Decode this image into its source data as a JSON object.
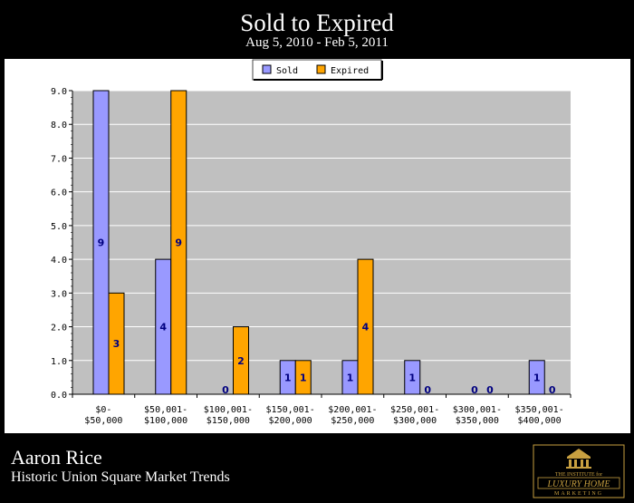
{
  "header": {
    "title": "Sold to Expired",
    "subtitle": "Aug 5, 2010 - Feb 5, 2011"
  },
  "footer": {
    "name": "Aaron Rice",
    "subtitle": "Historic Union Square Market Trends",
    "logo_top": "THE INSTITUTE for",
    "logo_main": "LUXURY HOME",
    "logo_bottom": "MARKETING"
  },
  "chart_data": {
    "type": "bar",
    "title": "",
    "xlabel": "",
    "ylabel": "",
    "categories": [
      [
        "$0-",
        "$50,000"
      ],
      [
        "$50,001-",
        "$100,000"
      ],
      [
        "$100,001-",
        "$150,000"
      ],
      [
        "$150,001-",
        "$200,000"
      ],
      [
        "$200,001-",
        "$250,000"
      ],
      [
        "$250,001-",
        "$300,000"
      ],
      [
        "$300,001-",
        "$350,000"
      ],
      [
        "$350,001-",
        "$400,000"
      ]
    ],
    "series": [
      {
        "name": "Sold",
        "color": "#9999ff",
        "values": [
          9,
          4,
          0,
          1,
          1,
          1,
          0,
          1
        ]
      },
      {
        "name": "Expired",
        "color": "#ffa500",
        "values": [
          3,
          9,
          2,
          1,
          4,
          0,
          0,
          0
        ]
      }
    ],
    "ylim": [
      0,
      9
    ],
    "yticks": [
      "0.0",
      "1.0",
      "2.0",
      "3.0",
      "4.0",
      "5.0",
      "6.0",
      "7.0",
      "8.0",
      "9.0"
    ],
    "grid": true,
    "legend": "top-center",
    "plot_background": "#c0c0c0"
  }
}
